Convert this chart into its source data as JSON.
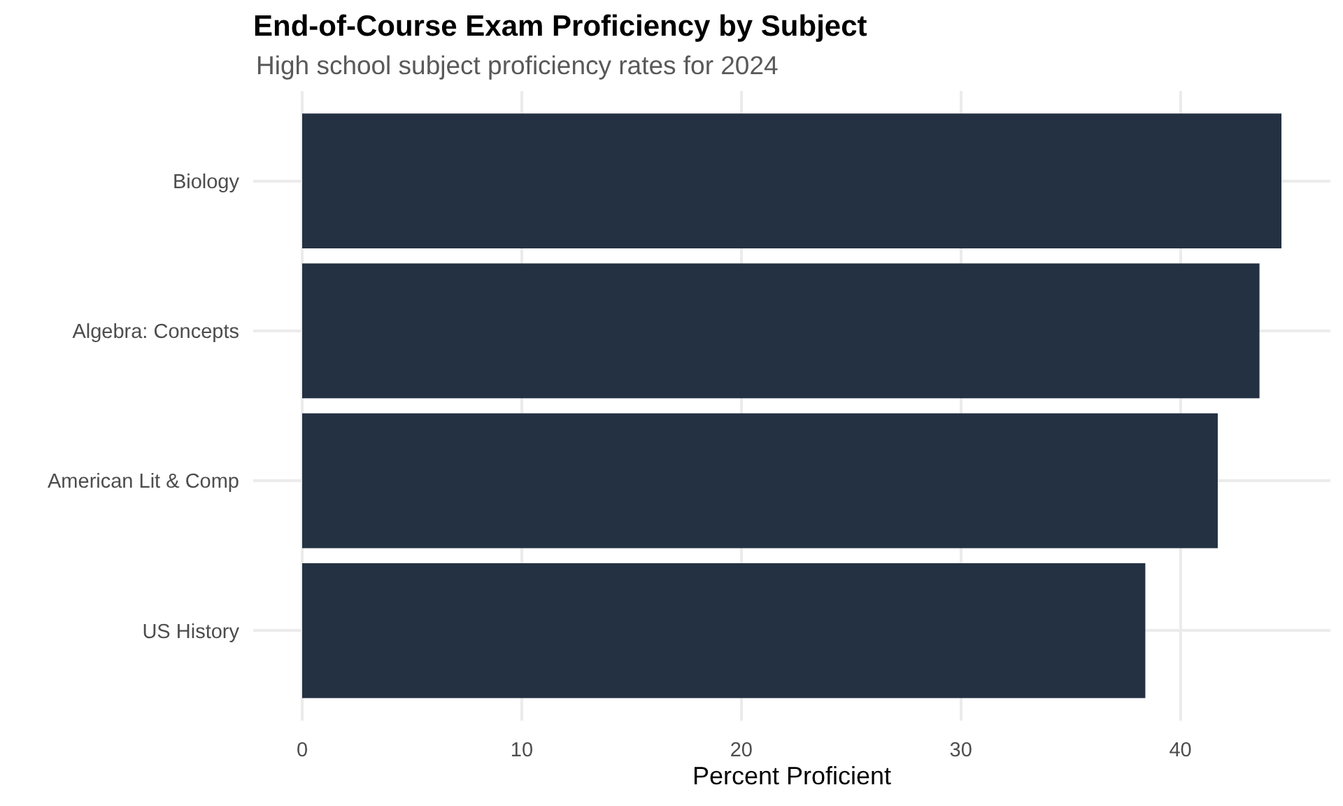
{
  "chart_data": {
    "type": "bar",
    "orientation": "horizontal",
    "title": "End-of-Course Exam Proficiency by Subject",
    "subtitle": "High school subject proficiency rates for 2024",
    "xlabel": "Percent Proficient",
    "categories": [
      "Biology",
      "Algebra: Concepts",
      "American Lit & Comp",
      "US History"
    ],
    "values": [
      44.6,
      43.6,
      41.7,
      38.4
    ],
    "color": "#243142",
    "xlim": [
      -2.23,
      46.83
    ],
    "xticks": [
      0,
      10,
      20,
      30,
      40
    ],
    "grid": true
  }
}
